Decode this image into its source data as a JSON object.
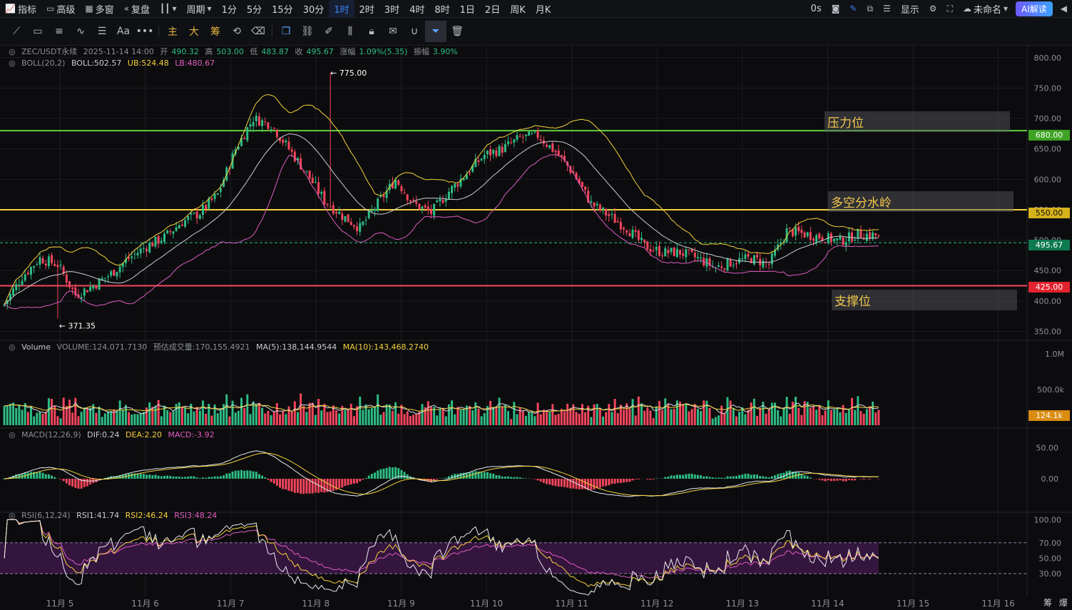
{
  "topbar": {
    "indicators": "指标",
    "advanced": "高级",
    "multi_window": "多窗",
    "replay": "复盘",
    "period": "周期",
    "timeframes": [
      "1分",
      "5分",
      "15分",
      "30分",
      "1时",
      "2时",
      "3时",
      "4时",
      "8时",
      "1日",
      "2日",
      "周K",
      "月K"
    ],
    "active_timeframe": "1时",
    "latency": "0s",
    "display": "显示",
    "unnamed": "未命名",
    "ai": "AI解读"
  },
  "toolbar": {
    "text_tool": "Aa",
    "main": "主",
    "large": "大",
    "chips": "筹"
  },
  "legend": {
    "symbol": "ZEC/USDT永续",
    "time": "2025-11-14 14:00",
    "open_label": "开",
    "open": "490.32",
    "high_label": "高",
    "high": "503.00",
    "low_label": "低",
    "low": "483.87",
    "close_label": "收",
    "close": "495.67",
    "change_label": "涨幅",
    "change": "1.09%(5.35)",
    "amp_label": "振幅",
    "amp": "3.90%",
    "boll": "BOLL(20,2)",
    "boll_val": "BOLL:502.57",
    "ub": "UB:524.48",
    "lb": "LB:480.67",
    "vol_name": "Volume",
    "vol": "VOLUME:124,071.7130",
    "vol_est": "预估成交量:170,155.4921",
    "ma5": "MA(5):138,144.9544",
    "ma10": "MA(10):143,468.2740",
    "macd_name": "MACD(12,26,9)",
    "dif": "DIF:0.24",
    "dea": "DEA:2.20",
    "macd": "MACD:-3.92",
    "rsi_name": "RSI(6,12,24)",
    "rsi1": "RSI1:41.74",
    "rsi2": "RSI2:46.24",
    "rsi3": "RSI3:48.24"
  },
  "annotations": {
    "resistance": "压力位",
    "watershed": "多空分水岭",
    "support": "支撑位"
  },
  "price_tags": {
    "res": "680.00",
    "mid": "550.00",
    "last": "495.67",
    "sup": "425.00",
    "vol_last": "124.1k"
  },
  "extremes": {
    "high": "775.00",
    "low": "371.35"
  },
  "bottom_right": {
    "chips": "筹",
    "burst": "爆"
  },
  "colors": {
    "up": "#2ebd85",
    "down": "#f6465d",
    "boll_mid": "#c9ccd2",
    "ub": "#f5d13c",
    "lb": "#e05cc0",
    "res_line": "#5fd13b",
    "mid_line": "#f5d13c",
    "sup_line": "#f6465d"
  },
  "chart_data": {
    "type": "candlestick",
    "x_ticks": [
      "11月 5",
      "11月 6",
      "11月 7",
      "11月 8",
      "11月 9",
      "11月 10",
      "11月 11",
      "11月 12",
      "11月 13",
      "11月 14",
      "11月 15",
      "11月 16"
    ],
    "price_axis": {
      "ticks": [
        800,
        750,
        700,
        650,
        600,
        550,
        500,
        450,
        400,
        350
      ],
      "range": [
        340,
        815
      ]
    },
    "horizontal_levels": [
      {
        "label": "压力位",
        "value": 680
      },
      {
        "label": "多空分水岭",
        "value": 550
      },
      {
        "label": "支撑位",
        "value": 425
      }
    ],
    "last_price": 495.67,
    "close_path": [
      [
        0,
        395
      ],
      [
        6,
        440
      ],
      [
        12,
        470
      ],
      [
        18,
        460
      ],
      [
        24,
        410
      ],
      [
        30,
        425
      ],
      [
        36,
        445
      ],
      [
        42,
        470
      ],
      [
        48,
        490
      ],
      [
        54,
        505
      ],
      [
        60,
        530
      ],
      [
        66,
        545
      ],
      [
        72,
        575
      ],
      [
        78,
        650
      ],
      [
        84,
        700
      ],
      [
        90,
        690
      ],
      [
        96,
        650
      ],
      [
        102,
        610
      ],
      [
        108,
        565
      ],
      [
        114,
        540
      ],
      [
        120,
        520
      ],
      [
        126,
        560
      ],
      [
        132,
        600
      ],
      [
        138,
        560
      ],
      [
        144,
        545
      ],
      [
        150,
        580
      ],
      [
        156,
        610
      ],
      [
        162,
        640
      ],
      [
        168,
        650
      ],
      [
        174,
        668
      ],
      [
        180,
        672
      ],
      [
        186,
        645
      ],
      [
        192,
        610
      ],
      [
        198,
        560
      ],
      [
        204,
        540
      ],
      [
        210,
        520
      ],
      [
        216,
        490
      ],
      [
        222,
        480
      ],
      [
        228,
        480
      ],
      [
        234,
        470
      ],
      [
        240,
        455
      ],
      [
        246,
        465
      ],
      [
        252,
        470
      ],
      [
        258,
        460
      ],
      [
        264,
        515
      ],
      [
        270,
        510
      ],
      [
        276,
        505
      ],
      [
        282,
        498
      ],
      [
        288,
        510
      ],
      [
        294,
        508
      ],
      [
        296,
        495.67
      ]
    ],
    "volume_axis": {
      "ticks": [
        "1.0M",
        "500.0k"
      ]
    },
    "macd_axis": {
      "ticks": [
        50,
        0
      ]
    },
    "rsi_axis": {
      "ticks": [
        100,
        70,
        50,
        30
      ],
      "band": [
        30,
        70
      ]
    }
  }
}
